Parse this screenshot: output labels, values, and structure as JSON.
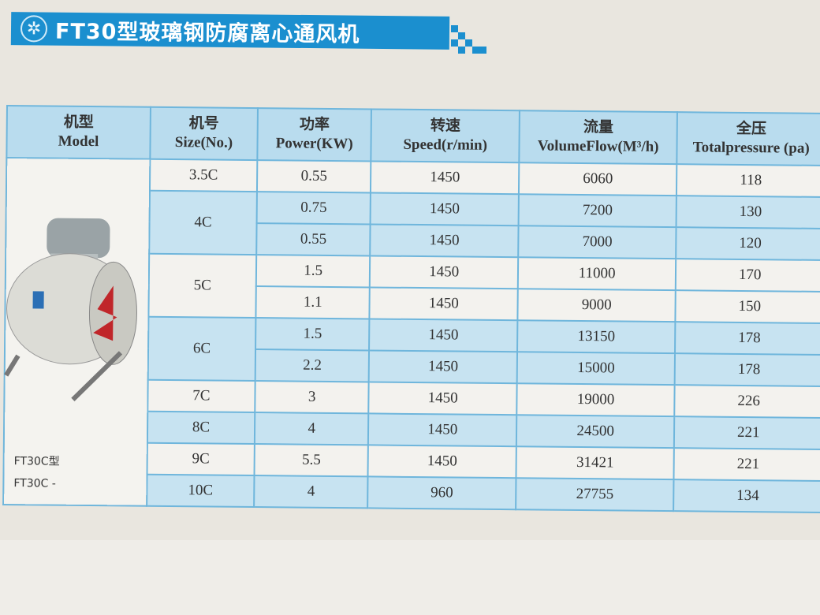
{
  "header": {
    "title": "FT30型玻璃钢防腐离心通风机",
    "icon": "fan-icon",
    "accent": "#1b8fcf"
  },
  "table": {
    "columns": [
      {
        "cn": "机型",
        "en": "Model"
      },
      {
        "cn": "机号",
        "en": "Size(No.)"
      },
      {
        "cn": "功率",
        "en": "Power(KW)"
      },
      {
        "cn": "转速",
        "en": "Speed(r/min)"
      },
      {
        "cn": "流量",
        "en": "VolumeFlow(M³/h)"
      },
      {
        "cn": "全压",
        "en": "Totalpressure (pa)"
      }
    ],
    "model_labels": [
      "FT30C型",
      "FT30C -"
    ],
    "groups": [
      {
        "size": "3.5C",
        "rows": [
          {
            "power": "0.55",
            "speed": "1450",
            "flow": "6060",
            "pressure": "118"
          }
        ]
      },
      {
        "size": "4C",
        "rows": [
          {
            "power": "0.75",
            "speed": "1450",
            "flow": "7200",
            "pressure": "130"
          },
          {
            "power": "0.55",
            "speed": "1450",
            "flow": "7000",
            "pressure": "120"
          }
        ]
      },
      {
        "size": "5C",
        "rows": [
          {
            "power": "1.5",
            "speed": "1450",
            "flow": "11000",
            "pressure": "170"
          },
          {
            "power": "1.1",
            "speed": "1450",
            "flow": "9000",
            "pressure": "150"
          }
        ]
      },
      {
        "size": "6C",
        "rows": [
          {
            "power": "1.5",
            "speed": "1450",
            "flow": "13150",
            "pressure": "178"
          },
          {
            "power": "2.2",
            "speed": "1450",
            "flow": "15000",
            "pressure": "178"
          }
        ]
      },
      {
        "size": "7C",
        "rows": [
          {
            "power": "3",
            "speed": "1450",
            "flow": "19000",
            "pressure": "226"
          }
        ]
      },
      {
        "size": "8C",
        "rows": [
          {
            "power": "4",
            "speed": "1450",
            "flow": "24500",
            "pressure": "221"
          }
        ]
      },
      {
        "size": "9C",
        "rows": [
          {
            "power": "5.5",
            "speed": "1450",
            "flow": "31421",
            "pressure": "221"
          }
        ]
      },
      {
        "size": "10C",
        "rows": [
          {
            "power": "4",
            "speed": "960",
            "flow": "27755",
            "pressure": "134"
          }
        ]
      }
    ]
  }
}
